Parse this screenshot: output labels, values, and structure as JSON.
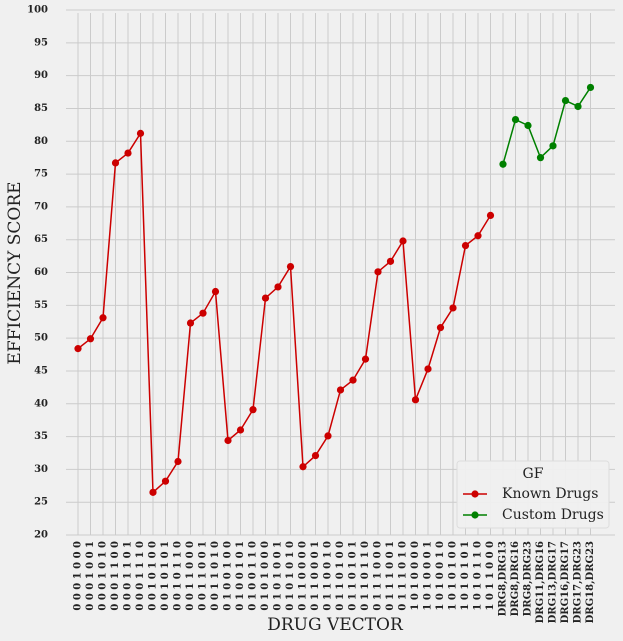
{
  "chart_data": {
    "type": "line",
    "xlabel": "DRUG VECTOR",
    "ylabel": "EFFICIENCY SCORE",
    "categories": [
      "0 0 0 1 0 0 0",
      "0 0 0 1 0 0 1",
      "0 0 0 1 0 1 0",
      "0 0 0 1 1 0 0",
      "0 0 0 1 1 0 1",
      "0 0 0 1 1 1 0",
      "0 0 1 0 1 0 0",
      "0 0 1 0 1 0 1",
      "0 0 1 0 1 1 0",
      "0 0 1 1 0 0 0",
      "0 0 1 1 0 0 1",
      "0 0 1 1 0 1 0",
      "0 1 0 0 1 0 0",
      "0 1 0 0 1 0 1",
      "0 1 0 0 1 1 0",
      "0 1 0 1 0 0 0",
      "0 1 0 1 0 0 1",
      "0 1 0 1 0 1 0",
      "0 1 1 0 0 0 0",
      "0 1 1 0 0 0 1",
      "0 1 1 0 0 1 0",
      "0 1 1 0 1 0 0",
      "0 1 1 0 1 0 1",
      "0 1 1 0 1 1 0",
      "0 1 1 1 0 0 0",
      "0 1 1 1 0 0 1",
      "0 1 1 1 0 1 0",
      "1 0 1 0 0 0 0",
      "1 0 1 0 0 0 1",
      "1 0 1 0 0 1 0",
      "1 0 1 0 1 0 0",
      "1 0 1 0 1 0 1",
      "1 0 1 0 1 1 0",
      "1 0 1 1 0 0 0",
      "DRG8,DRG13",
      "DRG8,DRG16",
      "DRG8,DRG23",
      "DRG11,DRG16",
      "DRG13,DRG17",
      "DRG16,DRG17",
      "DRG17,DRG23",
      "DRG18,DRG23"
    ],
    "series": [
      {
        "name": "Known Drugs",
        "color": "#cc0000",
        "values": [
          48.4,
          49.9,
          53.1,
          76.7,
          78.2,
          81.2,
          26.5,
          28.2,
          31.2,
          52.3,
          53.8,
          57.1,
          34.4,
          36.0,
          39.1,
          56.1,
          57.8,
          60.9,
          30.4,
          32.1,
          35.1,
          42.1,
          43.6,
          46.8,
          60.1,
          61.7,
          64.8,
          40.6,
          45.3,
          51.6,
          54.6,
          64.1,
          65.6,
          68.7,
          null,
          null,
          null,
          null,
          null,
          null,
          null,
          null
        ]
      },
      {
        "name": "Custom Drugs",
        "color": "#008000",
        "values": [
          null,
          null,
          null,
          null,
          null,
          null,
          null,
          null,
          null,
          null,
          null,
          null,
          null,
          null,
          null,
          null,
          null,
          null,
          null,
          null,
          null,
          null,
          null,
          null,
          null,
          null,
          null,
          null,
          null,
          null,
          null,
          null,
          null,
          null,
          76.5,
          83.3,
          82.4,
          77.5,
          79.3,
          86.2,
          85.3,
          88.2
        ]
      }
    ],
    "ylim": [
      20,
      100
    ],
    "yticks": [
      20,
      25,
      30,
      35,
      40,
      45,
      50,
      55,
      60,
      65,
      70,
      75,
      80,
      85,
      90,
      95,
      100
    ],
    "grid": true,
    "legend": {
      "title": "GF",
      "position": "lower right"
    }
  }
}
